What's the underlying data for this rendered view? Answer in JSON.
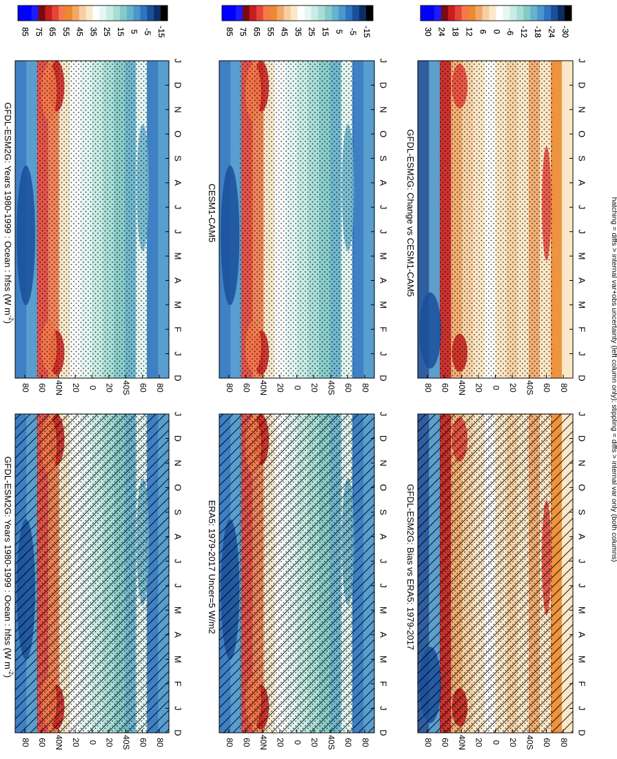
{
  "figure": {
    "footnote": "hatching = diffs > internal var+obs uncertainty (left column only); stippling = diffs > internal var only (both columns)"
  },
  "chart_data": [
    {
      "type": "heatmap",
      "id": "model-left",
      "title": "GFDL-ESM2G: Years 1980-1999 : Ocean : hfss (W m",
      "title_sup": "-2",
      "title_tail": ")",
      "months": [
        "D",
        "J",
        "F",
        "M",
        "A",
        "M",
        "J",
        "J",
        "A",
        "S",
        "O",
        "N",
        "D",
        "J"
      ],
      "lat_ticks": [
        "80",
        "60",
        "40N",
        "20",
        "0",
        "20",
        "40S",
        "60",
        "80"
      ],
      "colorbar": {
        "labels": [
          "85",
          "75",
          "65",
          "55",
          "45",
          "35",
          "25",
          "15",
          "5",
          "-5",
          "-15"
        ],
        "colors": [
          "#0000ff",
          "#0000ff",
          "#1c1cff",
          "#7a0a10",
          "#c81e1e",
          "#e6443a",
          "#f47a4a",
          "#ec8a30",
          "#f2a86a",
          "#f7cfa2",
          "#fbe8c8",
          "#ffffff",
          "#e6f7f3",
          "#c8ece6",
          "#a6ded6",
          "#84cbc8",
          "#67b3cc",
          "#4b96cc",
          "#2f74bf",
          "#1a4f9a",
          "#0e2d63",
          "#000000"
        ]
      },
      "hatching": true,
      "stipple": true
    },
    {
      "type": "heatmap",
      "id": "model-right",
      "title": "GFDL-ESM2G: Years 1980-1999 : Ocean : hfss (W m",
      "title_sup": "-2",
      "title_tail": ")",
      "months": [
        "D",
        "J",
        "F",
        "M",
        "A",
        "M",
        "J",
        "J",
        "A",
        "S",
        "O",
        "N",
        "D",
        "J"
      ],
      "lat_ticks": [
        "80",
        "60",
        "40N",
        "20",
        "0",
        "20",
        "40S",
        "60",
        "80"
      ],
      "colorbar": {
        "labels": [
          "85",
          "75",
          "65",
          "55",
          "45",
          "35",
          "25",
          "15",
          "5",
          "-5",
          "-15"
        ],
        "colors": [
          "#0000ff",
          "#0000ff",
          "#1c1cff",
          "#7a0a10",
          "#c81e1e",
          "#e6443a",
          "#f47a4a",
          "#ec8a30",
          "#f2a86a",
          "#f7cfa2",
          "#fbe8c8",
          "#ffffff",
          "#e6f7f3",
          "#c8ece6",
          "#a6ded6",
          "#84cbc8",
          "#67b3cc",
          "#4b96cc",
          "#2f74bf",
          "#1a4f9a",
          "#0e2d63",
          "#000000"
        ]
      },
      "hatching": false,
      "stipple": true
    },
    {
      "type": "heatmap",
      "id": "ref-left",
      "title": "ERA5: 1979-2017 Uncer=5 W/m2",
      "title_sup": "",
      "title_tail": "",
      "months": [
        "D",
        "J",
        "F",
        "M",
        "A",
        "M",
        "J",
        "J",
        "A",
        "S",
        "O",
        "N",
        "D",
        "J"
      ],
      "lat_ticks": [
        "80",
        "60",
        "40N",
        "20",
        "0",
        "20",
        "40S",
        "60",
        "80"
      ],
      "colorbar": {
        "labels": [
          "85",
          "75",
          "65",
          "55",
          "45",
          "35",
          "25",
          "15",
          "5",
          "-5",
          "-15"
        ],
        "colors": [
          "#0000ff",
          "#0000ff",
          "#1c1cff",
          "#7a0a10",
          "#c81e1e",
          "#e6443a",
          "#f47a4a",
          "#ec8a30",
          "#f2a86a",
          "#f7cfa2",
          "#fbe8c8",
          "#ffffff",
          "#e6f7f3",
          "#c8ece6",
          "#a6ded6",
          "#84cbc8",
          "#67b3cc",
          "#4b96cc",
          "#2f74bf",
          "#1a4f9a",
          "#0e2d63",
          "#000000"
        ]
      },
      "hatching": true,
      "stipple": true
    },
    {
      "type": "heatmap",
      "id": "ref-right",
      "title": "CESM1-CAM5",
      "title_sup": "",
      "title_tail": "",
      "months": [
        "D",
        "J",
        "F",
        "M",
        "A",
        "M",
        "J",
        "J",
        "A",
        "S",
        "O",
        "N",
        "D",
        "J"
      ],
      "lat_ticks": [
        "80",
        "60",
        "40N",
        "20",
        "0",
        "20",
        "40S",
        "60",
        "80"
      ],
      "colorbar": {
        "labels": [
          "85",
          "75",
          "65",
          "55",
          "45",
          "35",
          "25",
          "15",
          "5",
          "-5",
          "-15"
        ],
        "colors": [
          "#0000ff",
          "#0000ff",
          "#1c1cff",
          "#7a0a10",
          "#c81e1e",
          "#e6443a",
          "#f47a4a",
          "#ec8a30",
          "#f2a86a",
          "#f7cfa2",
          "#fbe8c8",
          "#ffffff",
          "#e6f7f3",
          "#c8ece6",
          "#a6ded6",
          "#84cbc8",
          "#67b3cc",
          "#4b96cc",
          "#2f74bf",
          "#1a4f9a",
          "#0e2d63",
          "#000000"
        ]
      },
      "hatching": false,
      "stipple": true
    },
    {
      "type": "heatmap",
      "id": "diff-left",
      "title": "GFDL-ESM2G: Bias vs ERA5: 1979-2017",
      "title_sup": "",
      "title_tail": "",
      "months": [
        "D",
        "J",
        "F",
        "M",
        "A",
        "M",
        "J",
        "J",
        "A",
        "S",
        "O",
        "N",
        "D",
        "J"
      ],
      "lat_ticks": [
        "80",
        "60",
        "40N",
        "20",
        "0",
        "20",
        "40S",
        "60",
        "80"
      ],
      "colorbar": {
        "labels": [
          "30",
          "24",
          "18",
          "12",
          "6",
          "0",
          "-6",
          "-12",
          "-18",
          "-24",
          "-30"
        ],
        "colors": [
          "#0000ff",
          "#0000ff",
          "#1c1cff",
          "#7a0a10",
          "#c81e1e",
          "#e6443a",
          "#f47a4a",
          "#ec8a30",
          "#f2a86a",
          "#f7cfa2",
          "#fbe8c8",
          "#ffffff",
          "#e6f7f3",
          "#c8ece6",
          "#a6ded6",
          "#84cbc8",
          "#67b3cc",
          "#4b96cc",
          "#2f74bf",
          "#1a4f9a",
          "#0e2d63",
          "#000000"
        ]
      },
      "hatching": true,
      "stipple": true
    },
    {
      "type": "heatmap",
      "id": "diff-right",
      "title": "GFDL-ESM2G: Change vs CESM1-CAM5",
      "title_sup": "",
      "title_tail": "",
      "months": [
        "D",
        "J",
        "F",
        "M",
        "A",
        "M",
        "J",
        "J",
        "A",
        "S",
        "O",
        "N",
        "D",
        "J"
      ],
      "lat_ticks": [
        "80",
        "60",
        "40N",
        "20",
        "0",
        "20",
        "40S",
        "60",
        "80"
      ],
      "colorbar": {
        "labels": [
          "30",
          "24",
          "18",
          "12",
          "6",
          "0",
          "-6",
          "-12",
          "-18",
          "-24",
          "-30"
        ],
        "colors": [
          "#0000ff",
          "#0000ff",
          "#1c1cff",
          "#7a0a10",
          "#c81e1e",
          "#e6443a",
          "#f47a4a",
          "#ec8a30",
          "#f2a86a",
          "#f7cfa2",
          "#fbe8c8",
          "#ffffff",
          "#e6f7f3",
          "#c8ece6",
          "#a6ded6",
          "#84cbc8",
          "#67b3cc",
          "#4b96cc",
          "#2f74bf",
          "#1a4f9a",
          "#0e2d63",
          "#000000"
        ]
      },
      "hatching": false,
      "stipple": true
    }
  ]
}
